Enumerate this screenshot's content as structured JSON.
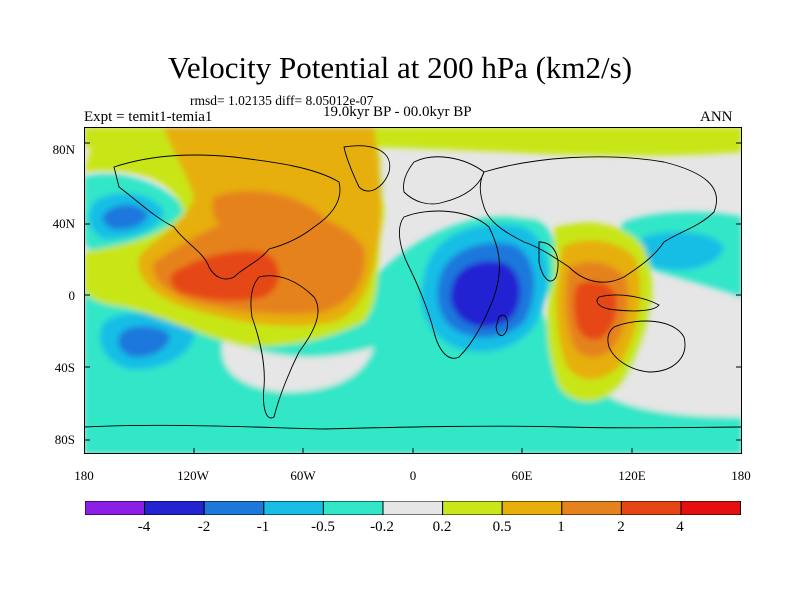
{
  "title": "Velocity Potential at 200 hPa (km2/s)",
  "stats": "rmsd= 1.02135 diff= 8.05012e-07",
  "experiment": "Expt = temit1-temia1",
  "period": "19.0kyr BP - 00.0kyr BP",
  "season": "ANN",
  "lat_labels": [
    "80N",
    "40N",
    "0",
    "40S",
    "80S"
  ],
  "lon_labels": [
    "180",
    "120W",
    "60W",
    "0",
    "60E",
    "120E",
    "180"
  ],
  "colorbar": {
    "labels": [
      "-4",
      "-2",
      "-1",
      "-0.5",
      "-0.2",
      "0.2",
      "0.5",
      "1",
      "2",
      "4"
    ],
    "colors": [
      "#8c1ee6",
      "#2323d2",
      "#1e78dc",
      "#19bee6",
      "#32e6c8",
      "#e6e6e6",
      "#c8e619",
      "#e6af0a",
      "#e6821e",
      "#e64614",
      "#e60f0f"
    ]
  },
  "palette": {
    "neutral": "#e6e6e6",
    "pos1": "#c8e619",
    "pos2": "#e6af0a",
    "pos3": "#e6821e",
    "pos4": "#e64614",
    "neg1": "#32e6c8",
    "neg2": "#19bee6",
    "neg3": "#1e78dc",
    "neg4": "#2323d2"
  }
}
